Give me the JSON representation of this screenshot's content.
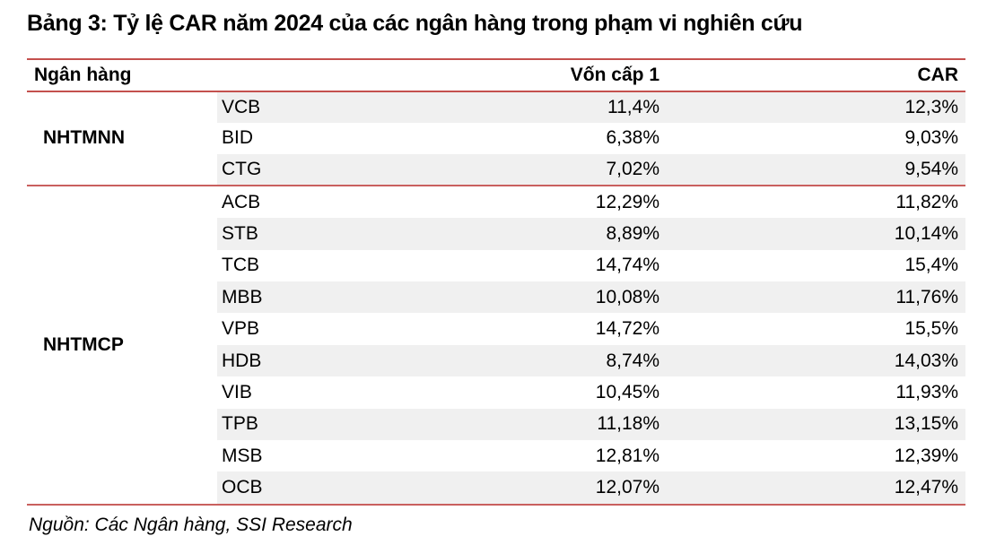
{
  "title": "Bảng 3: Tỷ lệ CAR năm 2024 của các ngân hàng trong phạm vi nghiên cứu",
  "source": "Nguồn: Các Ngân hàng, SSI Research",
  "colors": {
    "separator_red": "#c4504e",
    "stripe_gray": "#f0f0f0",
    "text": "#000000"
  },
  "table": {
    "headers": {
      "bank": "Ngân hàng",
      "tier1": "Vốn cấp 1",
      "car": "CAR"
    },
    "groups": [
      {
        "name": "NHTMNN",
        "rows": [
          {
            "code": "VCB",
            "tier1": "11,4%",
            "car": "12,3%"
          },
          {
            "code": "BID",
            "tier1": "6,38%",
            "car": "9,03%"
          },
          {
            "code": "CTG",
            "tier1": "7,02%",
            "car": "9,54%"
          }
        ]
      },
      {
        "name": "NHTMCP",
        "rows": [
          {
            "code": "ACB",
            "tier1": "12,29%",
            "car": "11,82%"
          },
          {
            "code": "STB",
            "tier1": "8,89%",
            "car": "10,14%"
          },
          {
            "code": "TCB",
            "tier1": "14,74%",
            "car": "15,4%"
          },
          {
            "code": "MBB",
            "tier1": "10,08%",
            "car": "11,76%"
          },
          {
            "code": "VPB",
            "tier1": "14,72%",
            "car": "15,5%"
          },
          {
            "code": "HDB",
            "tier1": "8,74%",
            "car": "14,03%"
          },
          {
            "code": "VIB",
            "tier1": "10,45%",
            "car": "11,93%"
          },
          {
            "code": "TPB",
            "tier1": "11,18%",
            "car": "13,15%"
          },
          {
            "code": "MSB",
            "tier1": "12,81%",
            "car": "12,39%"
          },
          {
            "code": "OCB",
            "tier1": "12,07%",
            "car": "12,47%"
          }
        ]
      }
    ]
  }
}
